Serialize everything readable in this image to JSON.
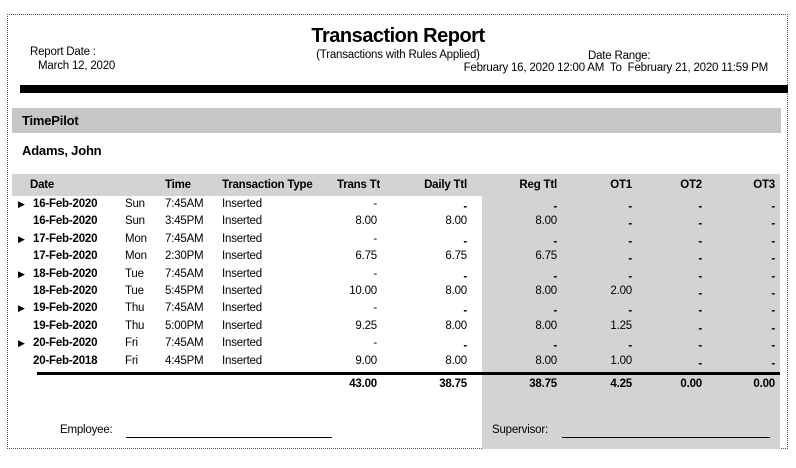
{
  "report": {
    "title": "Transaction Report",
    "subtitle": "(Transactions with Rules Applied)",
    "report_date_label": "Report Date :",
    "report_date": "March 12, 2020",
    "date_range_label": "Date Range:",
    "date_range": "February 16, 2020 12:00 AM  To  February 21, 2020 11:59 PM"
  },
  "company": "TimePilot",
  "employee_name": "Adams, John",
  "table": {
    "headers": [
      "Date",
      "Time",
      "Transaction Type",
      "Trans Ttl",
      "Daily Ttl",
      "Reg Ttl",
      "OT1",
      "OT2",
      "OT3"
    ],
    "rows": [
      {
        "arrow": "▶",
        "date": "16-Feb-2020",
        "day": "Sun",
        "time": "7:45AM",
        "type": "Inserted",
        "trans": "-",
        "daily": "-",
        "reg": "-",
        "ot1": "-",
        "ot2": "-",
        "ot3": "-"
      },
      {
        "arrow": "",
        "date": "16-Feb-2020",
        "day": "Sun",
        "time": "3:45PM",
        "type": "Inserted",
        "trans": "8.00",
        "daily": "8.00",
        "reg": "8.00",
        "ot1": "-",
        "ot2": "-",
        "ot3": "-"
      },
      {
        "arrow": "▶",
        "date": "17-Feb-2020",
        "day": "Mon",
        "time": "7:45AM",
        "type": "Inserted",
        "trans": "-",
        "daily": "-",
        "reg": "-",
        "ot1": "-",
        "ot2": "-",
        "ot3": "-"
      },
      {
        "arrow": "",
        "date": "17-Feb-2020",
        "day": "Mon",
        "time": "2:30PM",
        "type": "Inserted",
        "trans": "6.75",
        "daily": "6.75",
        "reg": "6.75",
        "ot1": "-",
        "ot2": "-",
        "ot3": "-"
      },
      {
        "arrow": "▶",
        "date": "18-Feb-2020",
        "day": "Tue",
        "time": "7:45AM",
        "type": "Inserted",
        "trans": "-",
        "daily": "-",
        "reg": "-",
        "ot1": "-",
        "ot2": "-",
        "ot3": "-"
      },
      {
        "arrow": "",
        "date": "18-Feb-2020",
        "day": "Tue",
        "time": "5:45PM",
        "type": "Inserted",
        "trans": "10.00",
        "daily": "8.00",
        "reg": "8.00",
        "ot1": "2.00",
        "ot2": "-",
        "ot3": "-"
      },
      {
        "arrow": "▶",
        "date": "19-Feb-2020",
        "day": "Thu",
        "time": "7:45AM",
        "type": "Inserted",
        "trans": "-",
        "daily": "-",
        "reg": "-",
        "ot1": "-",
        "ot2": "-",
        "ot3": "-"
      },
      {
        "arrow": "",
        "date": "19-Feb-2020",
        "day": "Thu",
        "time": "5:00PM",
        "type": "Inserted",
        "trans": "9.25",
        "daily": "8.00",
        "reg": "8.00",
        "ot1": "1.25",
        "ot2": "-",
        "ot3": "-"
      },
      {
        "arrow": "▶",
        "date": "20-Feb-2020",
        "day": "Fri",
        "time": "7:45AM",
        "type": "Inserted",
        "trans": "-",
        "daily": "-",
        "reg": "-",
        "ot1": "-",
        "ot2": "-",
        "ot3": "-"
      },
      {
        "arrow": "",
        "date": "20-Feb-2018",
        "day": "Fri",
        "time": "4:45PM",
        "type": "Inserted",
        "trans": "9.00",
        "daily": "8.00",
        "reg": "8.00",
        "ot1": "1.00",
        "ot2": "-",
        "ot3": "-"
      }
    ],
    "totals": {
      "trans": "43.00",
      "daily": "38.75",
      "reg": "38.75",
      "ot1": "4.25",
      "ot2": "0.00",
      "ot3": "0.00"
    }
  },
  "signatures": {
    "employee_label": "Employee:",
    "supervisor_label": "Supervisor:"
  },
  "colors": {
    "company_band_gray": "#c6c6c6",
    "table_shading_gray": "#d3d3d3",
    "divider_black": "#000000"
  }
}
